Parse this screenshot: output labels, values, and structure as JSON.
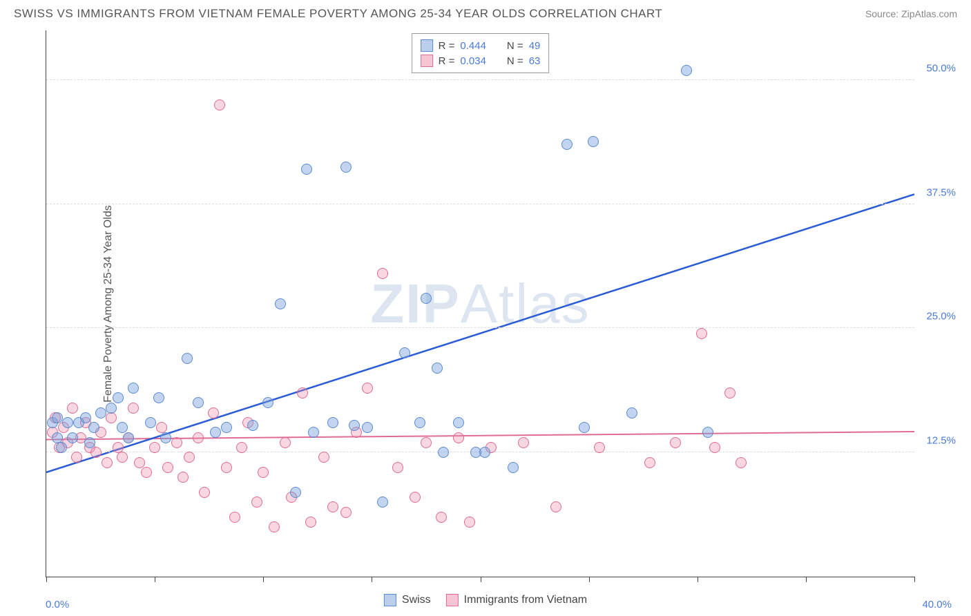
{
  "title": "SWISS VS IMMIGRANTS FROM VIETNAM FEMALE POVERTY AMONG 25-34 YEAR OLDS CORRELATION CHART",
  "source_label": "Source: ZipAtlas.com",
  "yaxis_label": "Female Poverty Among 25-34 Year Olds",
  "watermark": {
    "prefix": "ZIP",
    "suffix": "Atlas"
  },
  "chart": {
    "type": "scatter",
    "xlim": [
      0,
      40
    ],
    "ylim": [
      0,
      55
    ],
    "x_ticks_at": [
      0,
      5,
      10,
      15,
      20,
      25,
      30,
      35,
      40
    ],
    "x_tick_labels": {
      "first": "0.0%",
      "last": "40.0%"
    },
    "y_gridlines": [
      12.5,
      25.0,
      37.5,
      50.0
    ],
    "y_tick_labels": [
      "12.5%",
      "25.0%",
      "37.5%",
      "50.0%"
    ],
    "background_color": "#ffffff",
    "grid_color": "#dddddd",
    "axis_color": "#444444",
    "label_color": "#4a7bd8",
    "marker_radius": 8,
    "series": {
      "swiss": {
        "label": "Swiss",
        "color_fill": "rgba(119,160,220,0.45)",
        "color_stroke": "#5b8bd0",
        "R": "0.444",
        "N": "49",
        "trend": {
          "x1": 0,
          "y1": 10.5,
          "x2": 40,
          "y2": 38.5,
          "color": "#2a5bd7",
          "width": 2.5
        },
        "points": [
          [
            0.3,
            15.5
          ],
          [
            0.5,
            14
          ],
          [
            0.5,
            16
          ],
          [
            0.7,
            13
          ],
          [
            1,
            15.5
          ],
          [
            1.2,
            14
          ],
          [
            1.5,
            15.5
          ],
          [
            1.8,
            16
          ],
          [
            2,
            13.5
          ],
          [
            2.2,
            15
          ],
          [
            2.5,
            16.5
          ],
          [
            3,
            17
          ],
          [
            3.3,
            18
          ],
          [
            3.5,
            15
          ],
          [
            3.8,
            14
          ],
          [
            4,
            19
          ],
          [
            4.8,
            15.5
          ],
          [
            5.2,
            18
          ],
          [
            5.5,
            14
          ],
          [
            6.5,
            22
          ],
          [
            7,
            17.5
          ],
          [
            7.8,
            14.5
          ],
          [
            8.3,
            15
          ],
          [
            9.5,
            15.2
          ],
          [
            10.2,
            17.5
          ],
          [
            10.8,
            27.5
          ],
          [
            11.5,
            8.5
          ],
          [
            12,
            41
          ],
          [
            12.3,
            14.5
          ],
          [
            13.2,
            15.5
          ],
          [
            13.8,
            41.2
          ],
          [
            14.2,
            15.2
          ],
          [
            14.8,
            15
          ],
          [
            15.5,
            7.5
          ],
          [
            16.5,
            22.5
          ],
          [
            17.2,
            15.5
          ],
          [
            17.5,
            28
          ],
          [
            18,
            21
          ],
          [
            18.3,
            12.5
          ],
          [
            19,
            15.5
          ],
          [
            19.8,
            12.5
          ],
          [
            20.2,
            12.5
          ],
          [
            21.5,
            11
          ],
          [
            24,
            43.5
          ],
          [
            24.8,
            15
          ],
          [
            25.2,
            43.8
          ],
          [
            27,
            16.5
          ],
          [
            29.5,
            51
          ],
          [
            30.5,
            14.5
          ]
        ]
      },
      "vietnam": {
        "label": "Immigrants from Vietnam",
        "color_fill": "rgba(235,140,170,0.35)",
        "color_stroke": "#e06b94",
        "R": "0.034",
        "N": "63",
        "trend": {
          "x1": 0,
          "y1": 13.8,
          "x2": 40,
          "y2": 14.6,
          "color": "#e06b94",
          "width": 2
        },
        "points": [
          [
            0.3,
            14.5
          ],
          [
            0.4,
            16
          ],
          [
            0.6,
            13
          ],
          [
            0.8,
            15
          ],
          [
            1,
            13.5
          ],
          [
            1.2,
            17
          ],
          [
            1.4,
            12
          ],
          [
            1.6,
            14
          ],
          [
            1.8,
            15.5
          ],
          [
            2,
            13
          ],
          [
            2.3,
            12.5
          ],
          [
            2.5,
            14.5
          ],
          [
            2.8,
            11.5
          ],
          [
            3,
            16
          ],
          [
            3.3,
            13
          ],
          [
            3.5,
            12
          ],
          [
            3.8,
            14
          ],
          [
            4,
            17
          ],
          [
            4.3,
            11.5
          ],
          [
            4.6,
            10.5
          ],
          [
            5,
            13
          ],
          [
            5.3,
            15
          ],
          [
            5.6,
            11
          ],
          [
            6,
            13.5
          ],
          [
            6.3,
            10
          ],
          [
            6.6,
            12
          ],
          [
            7,
            14
          ],
          [
            7.3,
            8.5
          ],
          [
            7.7,
            16.5
          ],
          [
            8,
            47.5
          ],
          [
            8.3,
            11
          ],
          [
            8.7,
            6
          ],
          [
            9,
            13
          ],
          [
            9.3,
            15.5
          ],
          [
            9.7,
            7.5
          ],
          [
            10,
            10.5
          ],
          [
            10.5,
            5
          ],
          [
            11,
            13.5
          ],
          [
            11.3,
            8
          ],
          [
            11.8,
            18.5
          ],
          [
            12.2,
            5.5
          ],
          [
            12.8,
            12
          ],
          [
            13.2,
            7
          ],
          [
            13.8,
            6.5
          ],
          [
            14.3,
            14.5
          ],
          [
            14.8,
            19
          ],
          [
            15.5,
            30.5
          ],
          [
            16.2,
            11
          ],
          [
            17,
            8
          ],
          [
            17.5,
            13.5
          ],
          [
            18.2,
            6
          ],
          [
            19,
            14
          ],
          [
            19.5,
            5.5
          ],
          [
            20.5,
            13
          ],
          [
            22,
            13.5
          ],
          [
            23.5,
            7
          ],
          [
            25.5,
            13
          ],
          [
            27.8,
            11.5
          ],
          [
            29,
            13.5
          ],
          [
            30.2,
            24.5
          ],
          [
            30.8,
            13
          ],
          [
            31.5,
            18.5
          ],
          [
            32,
            11.5
          ]
        ]
      }
    }
  },
  "legend_top_labels": {
    "R": "R =",
    "N": "N ="
  }
}
